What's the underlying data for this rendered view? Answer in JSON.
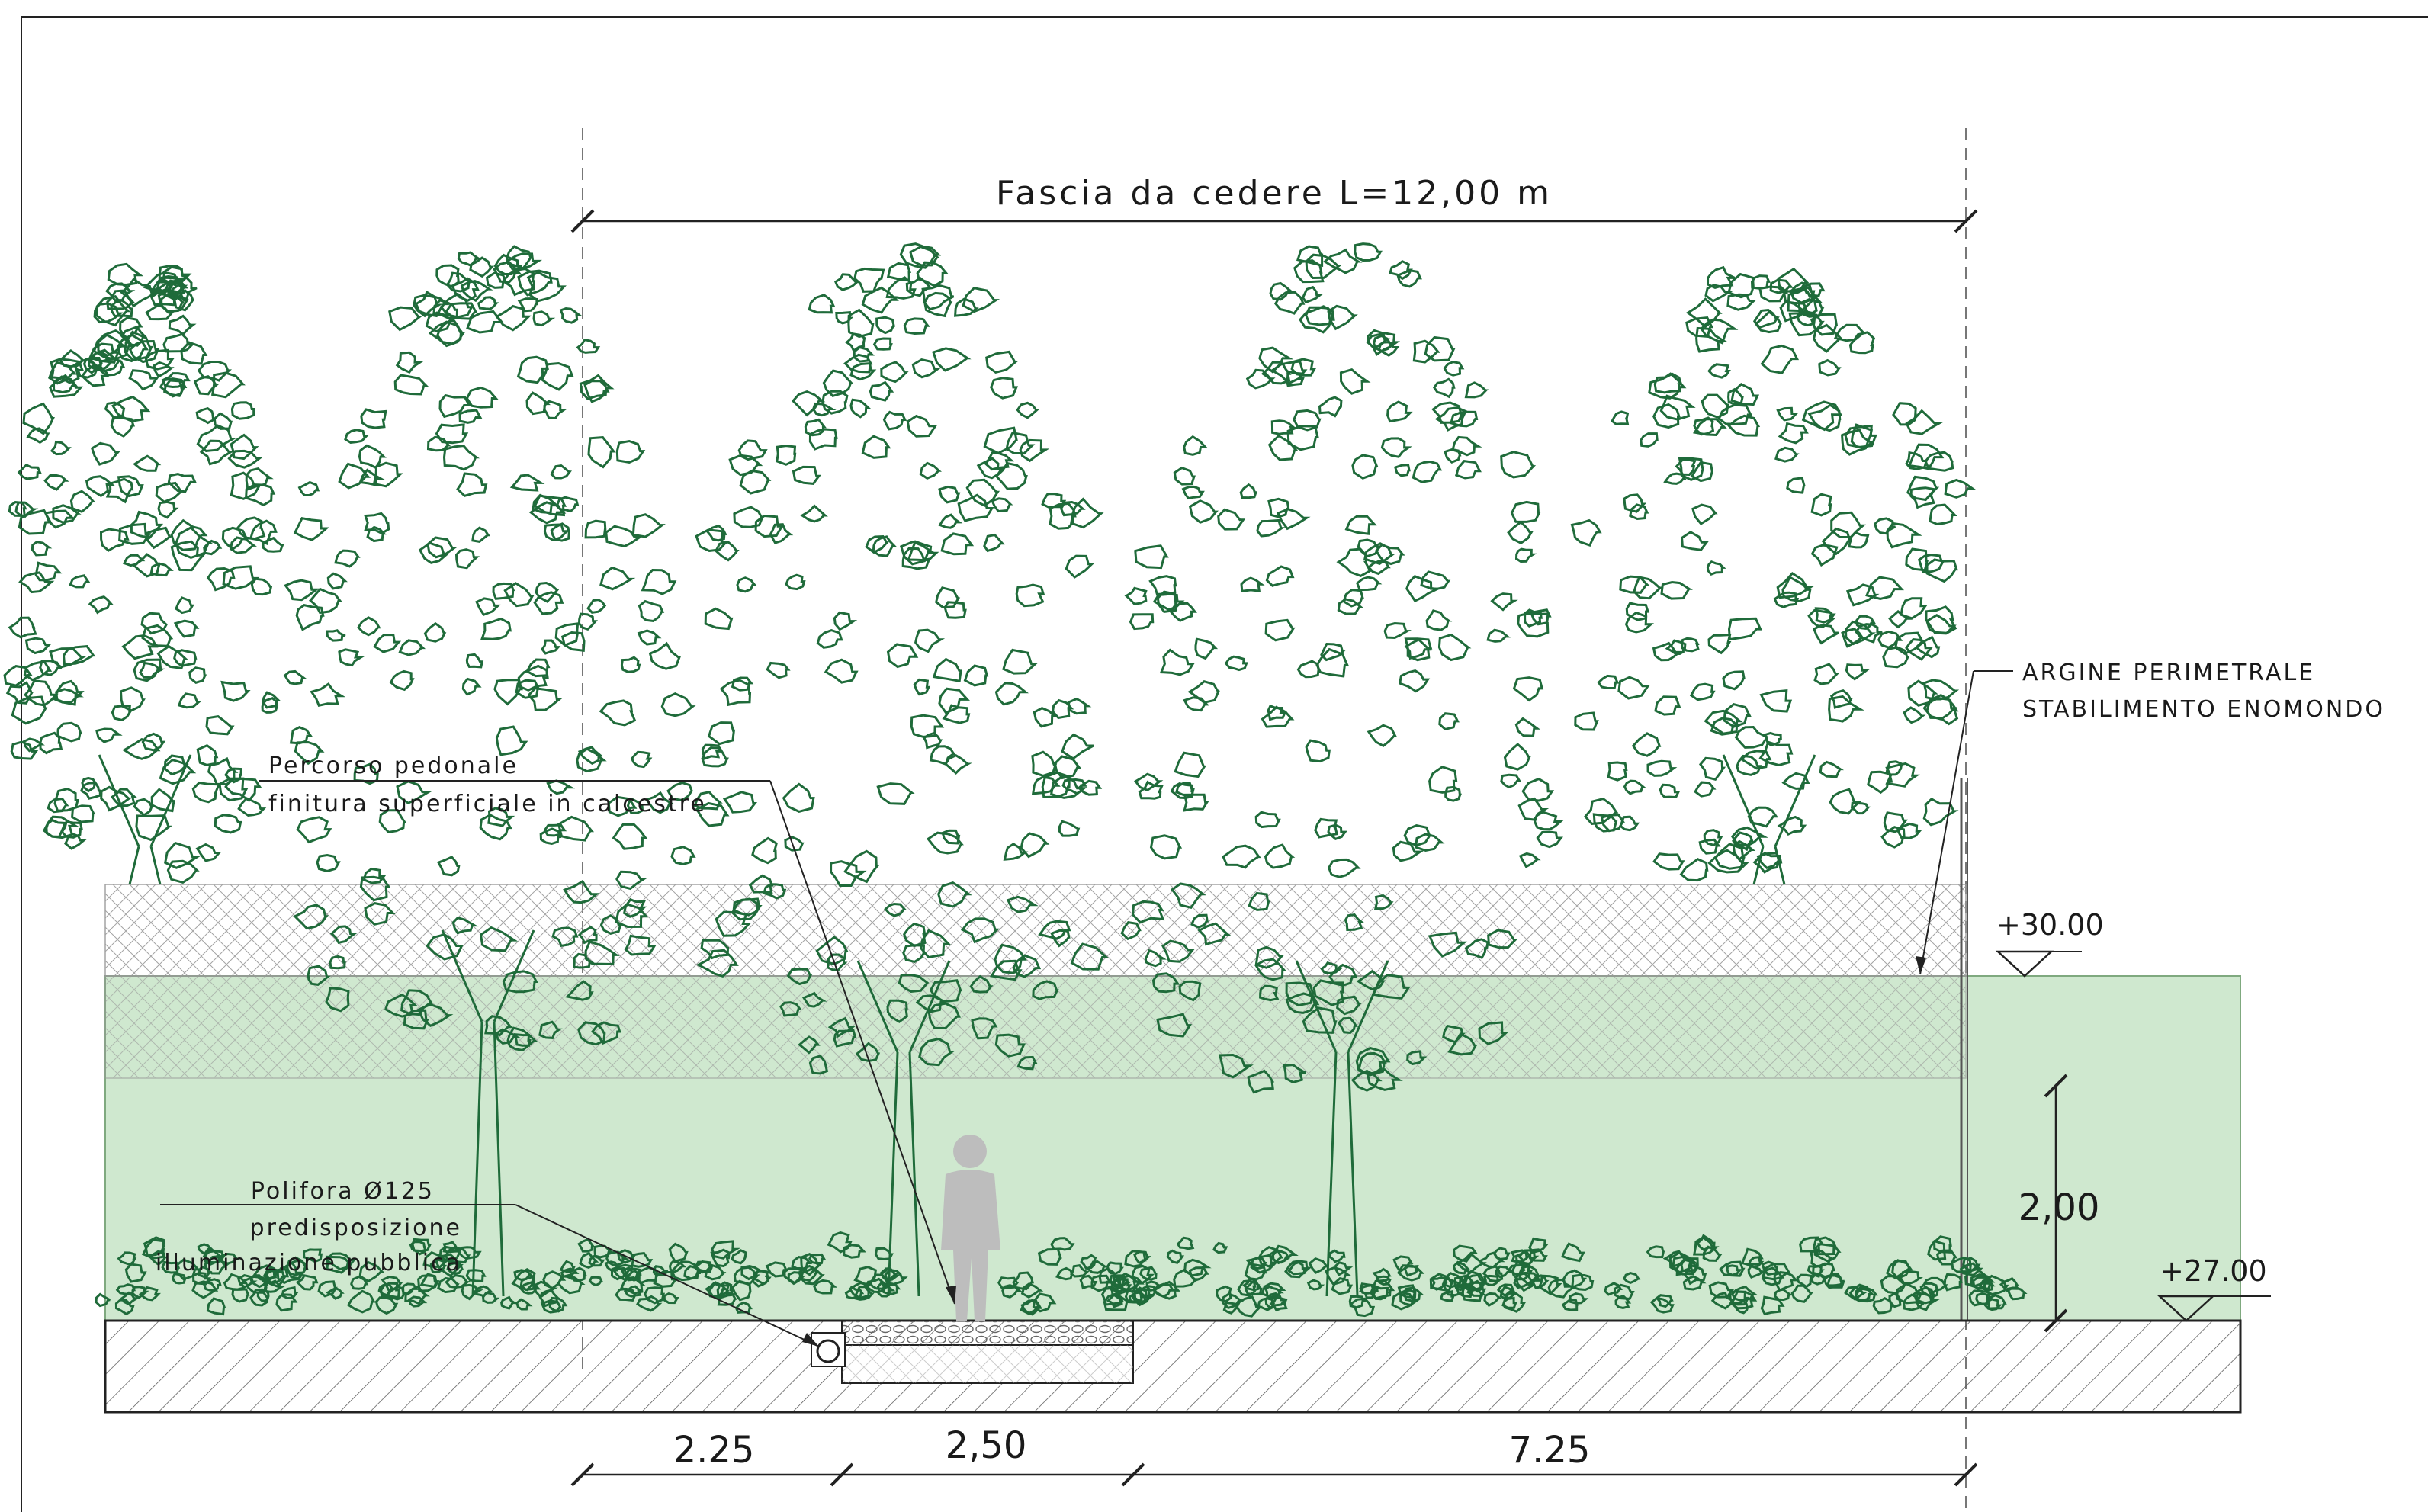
{
  "title": "Fascia da cedere L=12,00 m",
  "annotations": {
    "argine_line1": "ARGINE PERIMETRALE",
    "argine_line2": "STABILIMENTO ENOMONDO",
    "percorso_line1": "Percorso pedonale",
    "percorso_line2": "finitura superficiale in calcestre",
    "polifora_line1": "Polifora Ø125",
    "polifora_line2": "predisposizione",
    "polifora_line3": "illuminazione pubblica"
  },
  "levels": {
    "upper": "+30.00",
    "lower": "+27.00"
  },
  "height_dimension": "2,00",
  "bottom_dimensions": [
    "2.25",
    "2,50",
    "7.25"
  ],
  "colors": {
    "embankment": "#cfe8cf",
    "foliage": "#1f6b3a",
    "person": "#bdbdbd",
    "line": "#1a1a1a"
  }
}
